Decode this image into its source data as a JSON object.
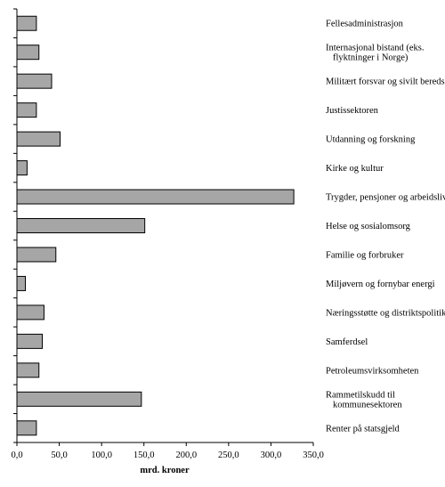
{
  "chart_data": {
    "type": "bar",
    "orientation": "horizontal",
    "title": "",
    "xlabel": "mrd. kroner",
    "ylabel": "",
    "xlim": [
      0,
      350
    ],
    "grid": false,
    "legend": "none",
    "bar_color": "#a6a6a6",
    "bar_edge_color": "#000000",
    "x_ticks": [
      "0,0",
      "50,0",
      "100,0",
      "150,0",
      "200,0",
      "250,0",
      "300,0",
      "350,0"
    ],
    "categories": [
      [
        "Fellesadministrasjon"
      ],
      [
        "Internasjonal bistand  (eks.",
        "flyktninger i Norge)"
      ],
      [
        "Militært forsvar og sivilt beredskap"
      ],
      [
        "Justissektoren"
      ],
      [
        "Utdanning og forskning"
      ],
      [
        "Kirke og kultur"
      ],
      [
        "Trygder, pensjoner og arbeidsliv"
      ],
      [
        "Helse og sosialomsorg"
      ],
      [
        "Familie og forbruker"
      ],
      [
        "Miljøvern og fornybar energi"
      ],
      [
        "Næringsstøtte og distriktspolitikk"
      ],
      [
        "Samferdsel"
      ],
      [
        "Petroleumsvirksomheten"
      ],
      [
        "Rammetilskudd til",
        "kommunesektoren"
      ],
      [
        "Renter på statsgjeld"
      ]
    ],
    "values": [
      23,
      26,
      41,
      23,
      51,
      12,
      327,
      151,
      46,
      10,
      32,
      30,
      26,
      147,
      23
    ]
  }
}
